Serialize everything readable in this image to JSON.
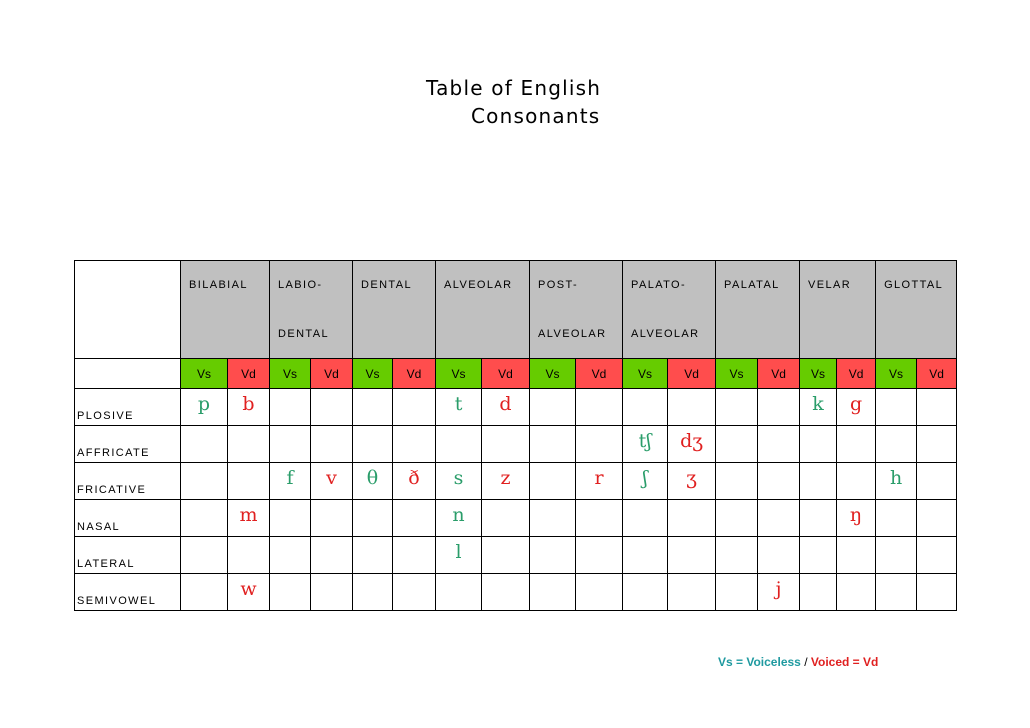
{
  "title": {
    "line1": "Table of English",
    "line2": "Consonants"
  },
  "places": [
    {
      "top": "BILABIAL",
      "bottom": ""
    },
    {
      "top": "LABIO-",
      "bottom": "DENTAL"
    },
    {
      "top": "DENTAL",
      "bottom": ""
    },
    {
      "top": "ALVEOLAR",
      "bottom": ""
    },
    {
      "top": "POST-",
      "bottom": "ALVEOLAR"
    },
    {
      "top": "PALATO-",
      "bottom": "ALVEOLAR"
    },
    {
      "top": "PALATAL",
      "bottom": ""
    },
    {
      "top": "VELAR",
      "bottom": ""
    },
    {
      "top": "GLOTTAL",
      "bottom": ""
    }
  ],
  "voicing": {
    "vs": "Vs",
    "vd": "Vd"
  },
  "rows": [
    {
      "manner": "PLOSIVE",
      "cells": [
        "p",
        "b",
        "",
        "",
        "",
        "",
        "t",
        "d",
        "",
        "",
        "",
        "",
        "",
        "",
        "k",
        "g",
        "",
        ""
      ]
    },
    {
      "manner": "AFFRICATE",
      "cells": [
        "",
        "",
        "",
        "",
        "",
        "",
        "",
        "",
        "",
        "",
        "tʃ",
        "dʒ",
        "",
        "",
        "",
        "",
        "",
        ""
      ]
    },
    {
      "manner": "FRICATIVE",
      "cells": [
        "",
        "",
        "f",
        "v",
        "θ",
        "ð",
        "s",
        "z",
        "",
        "r",
        "ʃ",
        "ʒ",
        "",
        "",
        "",
        "",
        "h",
        ""
      ]
    },
    {
      "manner": "NASAL",
      "cells": [
        "",
        "m",
        "",
        "",
        "",
        "",
        "n",
        "",
        "",
        "",
        "",
        "",
        "",
        "",
        "",
        "ŋ",
        "",
        ""
      ]
    },
    {
      "manner": "LATERAL",
      "cells": [
        "",
        "",
        "",
        "",
        "",
        "",
        "l",
        "",
        "",
        "",
        "",
        "",
        "",
        "",
        "",
        "",
        "",
        ""
      ]
    },
    {
      "manner": "SEMIVOWEL",
      "cells": [
        "",
        "w",
        "",
        "",
        "",
        "",
        "",
        "",
        "",
        "",
        "",
        "",
        "",
        "j",
        "",
        "",
        "",
        ""
      ]
    }
  ],
  "legend": {
    "left": "Vs = Voiceless",
    "sep": "/",
    "right": "Voiced = Vd"
  },
  "colors": {
    "voiceless": "#2a9d6a",
    "voiced": "#e02020",
    "vs_header": "#66cc00",
    "vd_header": "#ff4d4d",
    "place_header": "#c0c0c0"
  }
}
